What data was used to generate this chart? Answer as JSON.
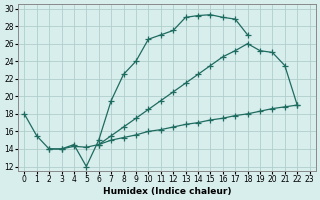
{
  "xlabel": "Humidex (Indice chaleur)",
  "bg_color": "#d8eeed",
  "grid_color": "#b0cecc",
  "line_color": "#1e6b60",
  "line1_x": [
    0,
    1,
    2,
    3,
    4,
    5,
    6,
    7,
    8,
    9,
    10,
    11,
    12,
    13,
    14,
    15,
    16,
    17,
    18
  ],
  "line1_y": [
    18.0,
    15.5,
    14.0,
    14.0,
    14.5,
    12.0,
    15.0,
    19.5,
    22.5,
    24.0,
    26.5,
    27.0,
    27.5,
    29.0,
    29.2,
    29.3,
    29.0,
    28.8,
    27.0
  ],
  "line2_x": [
    6,
    7,
    8,
    9,
    10,
    11,
    12,
    13,
    14,
    15,
    16,
    17,
    18,
    19,
    20,
    21,
    22
  ],
  "line2_y": [
    14.5,
    15.5,
    16.5,
    17.5,
    18.5,
    19.5,
    20.5,
    21.5,
    22.5,
    23.5,
    24.5,
    25.2,
    26.0,
    25.2,
    25.0,
    23.5,
    19.0
  ],
  "line3_x": [
    2,
    3,
    4,
    5,
    6,
    7,
    8,
    9,
    10,
    11,
    12,
    13,
    14,
    15,
    16,
    17,
    18,
    19,
    20,
    21,
    22
  ],
  "line3_y": [
    14.0,
    14.0,
    14.3,
    14.2,
    14.5,
    15.0,
    15.3,
    15.6,
    16.0,
    16.2,
    16.5,
    16.8,
    17.0,
    17.3,
    17.5,
    17.8,
    18.0,
    18.3,
    18.6,
    18.8,
    19.0
  ],
  "xlim": [
    -0.5,
    23.5
  ],
  "ylim": [
    11.5,
    30.5
  ],
  "xticks": [
    0,
    1,
    2,
    3,
    4,
    5,
    6,
    7,
    8,
    9,
    10,
    11,
    12,
    13,
    14,
    15,
    16,
    17,
    18,
    19,
    20,
    21,
    22,
    23
  ],
  "yticks": [
    12,
    14,
    16,
    18,
    20,
    22,
    24,
    26,
    28,
    30
  ]
}
